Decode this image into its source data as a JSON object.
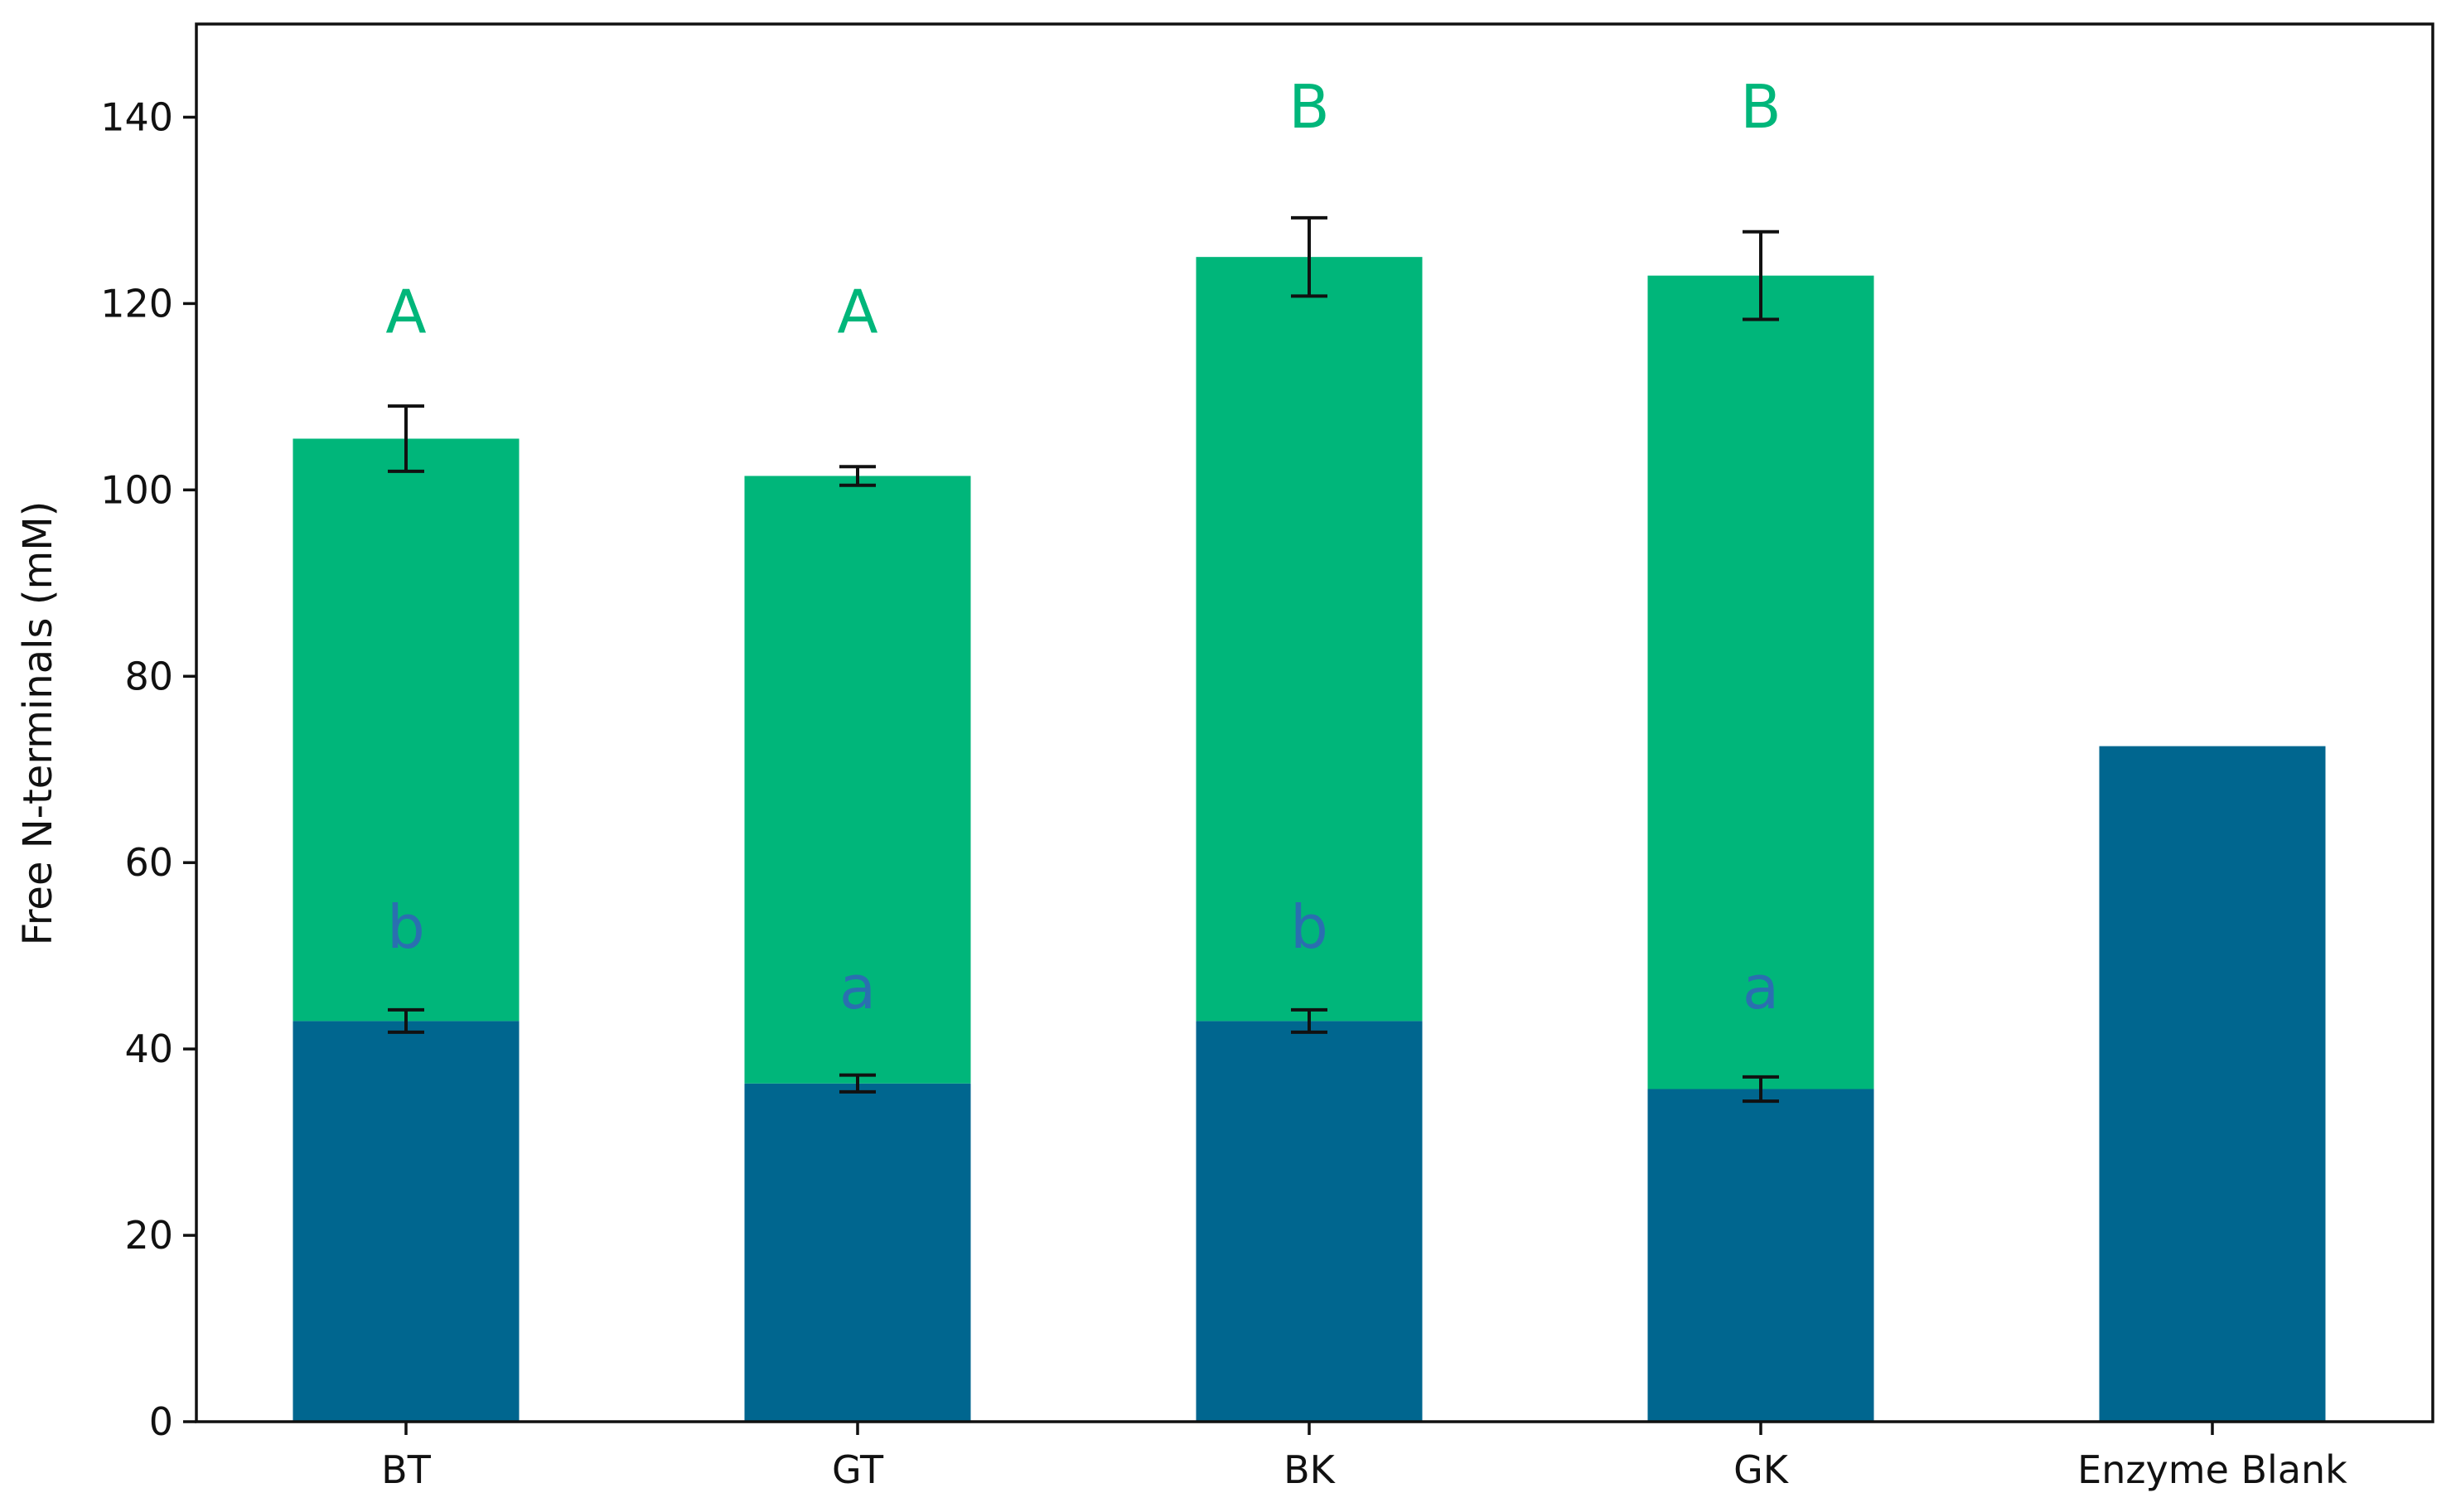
{
  "chart_data": {
    "type": "bar",
    "stacked": true,
    "title": "",
    "xlabel": "",
    "ylabel": "Free N-terminals (mM)",
    "ylim": [
      0,
      150
    ],
    "yticks": [
      0,
      20,
      40,
      60,
      80,
      100,
      120,
      140
    ],
    "grid": false,
    "legend": "none",
    "categories": [
      "BT",
      "GT",
      "BK",
      "GK",
      "Enzyme Blank"
    ],
    "series": [
      {
        "color": "#00668f",
        "values": [
          43,
          36.3,
          43,
          35.7,
          72.5
        ],
        "errors": [
          1.2,
          0.9,
          1.2,
          1.3,
          null
        ],
        "letters": [
          "b",
          "a",
          "b",
          "a",
          null
        ],
        "letter_values": [
          53,
          46.5,
          53,
          46.5,
          null
        ]
      },
      {
        "color": "#00b67a",
        "values": [
          62.5,
          65.2,
          82,
          87.3,
          0
        ],
        "errors": [
          3.5,
          1.0,
          4.2,
          4.7,
          null
        ],
        "letters": [
          "A",
          "A",
          "B",
          "B",
          null
        ],
        "letter_values": [
          119,
          119,
          141,
          141,
          null
        ]
      }
    ]
  }
}
